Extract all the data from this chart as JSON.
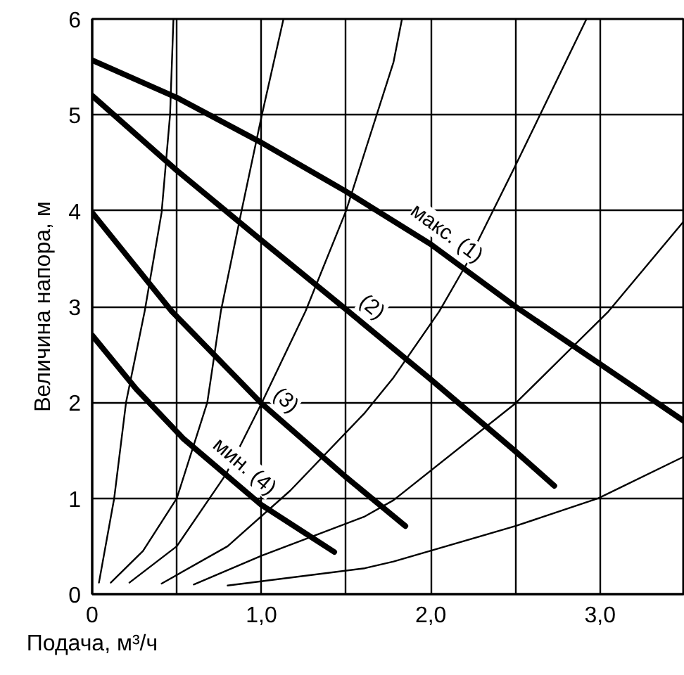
{
  "chart_data": {
    "type": "line",
    "xlabel": "Подача, м³/ч",
    "ylabel": "Величина напора, м",
    "xlim": [
      0,
      3.5
    ],
    "ylim": [
      0,
      6
    ],
    "xticks": [
      0,
      {
        "value": 0.5,
        "label": null
      },
      {
        "value": 1,
        "label": "1,0"
      },
      {
        "value": 1.5,
        "label": null
      },
      {
        "value": 2,
        "label": "2,0"
      },
      {
        "value": 2.5,
        "label": null
      },
      {
        "value": 3,
        "label": "3,0"
      },
      {
        "value": 3.5,
        "label": null
      }
    ],
    "yticks": [
      0,
      1,
      2,
      3,
      4,
      5,
      6
    ],
    "grid": true,
    "legend": false,
    "marker": "none",
    "line_style": "solid",
    "series": [
      {
        "name": "макс. (1)",
        "color": "#000000",
        "x": [
          0,
          0.5,
          1.0,
          1.5,
          2.0,
          2.5,
          3.0,
          3.5
        ],
        "values": [
          5.57,
          5.18,
          4.71,
          4.2,
          3.65,
          3.0,
          2.4,
          1.8
        ]
      },
      {
        "name": "(2)",
        "color": "#000000",
        "x": [
          0,
          0.5,
          1.0,
          1.5,
          2.0,
          2.5,
          2.73
        ],
        "values": [
          5.2,
          4.42,
          3.69,
          2.97,
          2.24,
          1.49,
          1.13
        ]
      },
      {
        "name": "(3)",
        "color": "#000000",
        "x": [
          0,
          0.47,
          1.0,
          1.5,
          1.85
        ],
        "values": [
          3.98,
          2.95,
          1.99,
          1.22,
          0.71
        ]
      },
      {
        "name": "мин. (4)",
        "color": "#000000",
        "x": [
          0,
          0.26,
          0.54,
          1.0,
          1.43
        ],
        "values": [
          2.7,
          2.14,
          1.62,
          0.93,
          0.44
        ]
      },
      {
        "color": "#000000",
        "x": [
          0.04,
          0.13,
          0.2,
          0.31,
          0.41,
          0.46,
          0.48
        ],
        "values": [
          0.12,
          1.0,
          2.0,
          2.95,
          3.98,
          5.0,
          6.0
        ]
      },
      {
        "color": "#000000",
        "x": [
          0.11,
          0.3,
          0.5,
          0.68,
          0.76,
          0.88,
          1.0,
          1.13
        ],
        "values": [
          0.12,
          0.45,
          1.0,
          2.0,
          2.95,
          3.98,
          4.98,
          6.0
        ]
      },
      {
        "color": "#000000",
        "x": [
          0.22,
          0.5,
          0.79,
          1.0,
          1.26,
          1.5,
          1.61,
          1.78,
          1.83
        ],
        "values": [
          0.12,
          0.5,
          1.25,
          1.99,
          2.95,
          4.0,
          4.61,
          5.55,
          6.0
        ]
      },
      {
        "color": "#000000",
        "x": [
          0.41,
          0.8,
          1.17,
          1.61,
          1.78,
          2.05,
          2.21,
          2.5,
          2.92
        ],
        "values": [
          0.11,
          0.5,
          1.08,
          1.89,
          2.26,
          2.95,
          3.44,
          4.47,
          6.0
        ]
      },
      {
        "color": "#000000",
        "x": [
          0.6,
          1.0,
          1.61,
          1.78,
          2.5,
          3.05,
          3.49
        ],
        "values": [
          0.1,
          0.4,
          0.81,
          0.98,
          1.99,
          2.95,
          3.88
        ]
      },
      {
        "color": "#000000",
        "x": [
          0.8,
          1.61,
          1.78,
          2.5,
          2.99,
          3.49
        ],
        "values": [
          0.09,
          0.27,
          0.34,
          0.71,
          1.0,
          1.43
        ]
      }
    ]
  }
}
